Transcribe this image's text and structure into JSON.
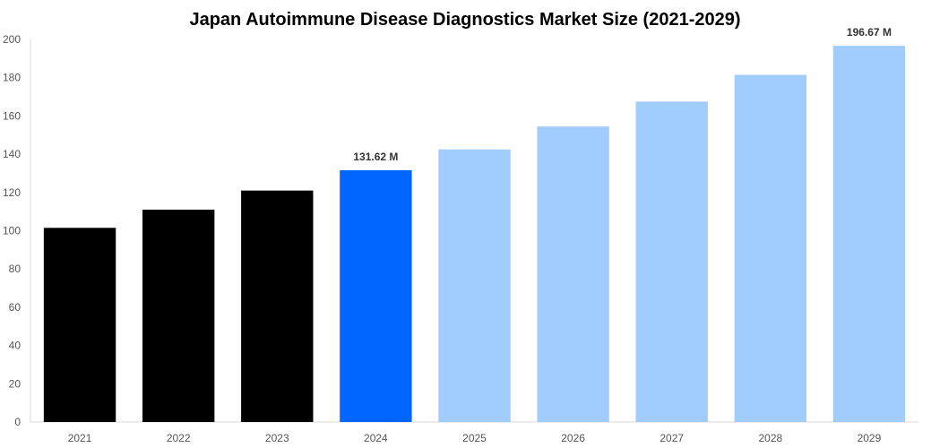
{
  "chart_data": {
    "type": "bar",
    "title": "Japan Autoimmune Disease Diagnostics Market Size (2021-2029)",
    "xlabel": "",
    "ylabel": "",
    "categories": [
      "2021",
      "2022",
      "2023",
      "2024",
      "2025",
      "2026",
      "2027",
      "2028",
      "2029"
    ],
    "values": [
      101.5,
      111,
      121,
      131.62,
      142.5,
      154.5,
      167.5,
      181.5,
      196.67
    ],
    "colors": [
      "#000000",
      "#000000",
      "#000000",
      "#0066ff",
      "#a0cdfd",
      "#a0cdfd",
      "#a0cdfd",
      "#a0cdfd",
      "#a0cdfd"
    ],
    "data_labels": {
      "2024": "131.62 M",
      "2029": "196.67 M"
    },
    "ylim": [
      0,
      200
    ],
    "yticks": [
      0,
      20,
      40,
      60,
      80,
      100,
      120,
      140,
      160,
      180,
      200
    ],
    "grid": false,
    "legend": "none"
  }
}
